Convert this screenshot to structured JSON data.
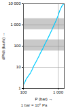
{
  "chart_data": {
    "type": "line",
    "xlabel": "P (bar)",
    "ylabel": "dP/dt (bar/s)",
    "x": [
      100,
      110,
      120,
      140,
      160,
      180,
      200,
      230,
      270,
      310,
      360,
      420,
      490,
      570,
      660,
      760,
      870,
      990,
      1100,
      1250,
      1400,
      1500
    ],
    "values": [
      1.5,
      2.0,
      2.8,
      4.0,
      5.5,
      8,
      12,
      18,
      30,
      48,
      75,
      130,
      210,
      350,
      580,
      980,
      1600,
      2700,
      4500,
      7200,
      9500,
      10000
    ],
    "color": "#00ccff",
    "log": true,
    "grid": true,
    "xlim": [
      100,
      1500
    ],
    "ylim": [
      1,
      10000
    ],
    "xticks": [
      100,
      {
        "value": 1000,
        "label": "1 000"
      }
    ],
    "yticks": [
      1,
      10,
      100,
      {
        "value": 1000,
        "label": "1 000"
      },
      {
        "value": 10000,
        "label": "10 000"
      }
    ],
    "bands": {
      "y": [
        [
          600,
          2000
        ],
        [
          60,
          200
        ]
      ],
      "color": "#c0c0c0"
    },
    "annotations": [
      "1 bar = 10⁵ Pa"
    ]
  }
}
